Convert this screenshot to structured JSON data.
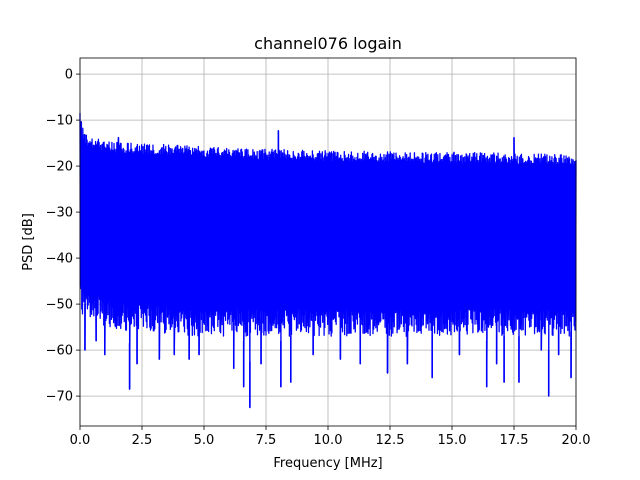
{
  "chart_data": {
    "type": "line",
    "title": "channel076 logain",
    "xlabel": "Frequency [MHz]",
    "ylabel": "PSD [dB]",
    "xlim": [
      0,
      20
    ],
    "ylim": [
      -76.5,
      3.5
    ],
    "xticks": [
      0,
      2.5,
      5,
      7.5,
      10,
      12.5,
      15,
      17.5,
      20
    ],
    "xtick_labels": [
      "0.0",
      "2.5",
      "5.0",
      "7.5",
      "10.0",
      "12.5",
      "15.0",
      "17.5",
      "20.0"
    ],
    "yticks": [
      0,
      -10,
      -20,
      -30,
      -40,
      -50,
      -60,
      -70
    ],
    "ytick_labels": [
      "0",
      "−10",
      "−20",
      "−30",
      "−40",
      "−50",
      "−60",
      "−70"
    ],
    "grid": true,
    "series": [
      {
        "color": "#0000ff",
        "upper_envelope": {
          "x": [
            0.0,
            0.05,
            0.15,
            0.3,
            0.6,
            1.0,
            2.0,
            3.0,
            4.0,
            5.0,
            6.0,
            7.0,
            8.0,
            9.0,
            10.0,
            11.0,
            12.0,
            13.0,
            14.0,
            15.0,
            16.0,
            17.0,
            18.0,
            19.0,
            20.0
          ],
          "y": [
            -7,
            -10,
            -12.5,
            -13.5,
            -14,
            -14.5,
            -15,
            -15.2,
            -15.5,
            -15.8,
            -16,
            -16.2,
            -16.4,
            -16.5,
            -16.6,
            -16.7,
            -16.8,
            -16.9,
            -17,
            -17,
            -17,
            -17.2,
            -17.3,
            -17.4,
            -17.5
          ]
        },
        "lower_envelope": {
          "x": [
            0.0,
            1.0,
            2.0,
            3.0,
            4.0,
            5.0,
            6.0,
            7.0,
            8.0,
            9.0,
            10.0,
            11.0,
            12.0,
            13.0,
            14.0,
            15.0,
            16.0,
            17.0,
            18.0,
            19.0,
            20.0
          ],
          "y": [
            -52,
            -55,
            -56,
            -56,
            -57,
            -57,
            -57,
            -57,
            -57,
            -57,
            -57,
            -57,
            -57,
            -57,
            -57,
            -57,
            -57,
            -57,
            -57,
            -57,
            -57
          ]
        },
        "peaks": [
          {
            "x": 8.0,
            "y": -12.3
          },
          {
            "x": 17.5,
            "y": -13.8
          },
          {
            "x": 1.55,
            "y": -13.8
          }
        ],
        "dips": [
          {
            "x": 0.2,
            "y": -60
          },
          {
            "x": 0.65,
            "y": -58
          },
          {
            "x": 1.0,
            "y": -61
          },
          {
            "x": 2.0,
            "y": -68.5
          },
          {
            "x": 2.3,
            "y": -63
          },
          {
            "x": 3.2,
            "y": -62
          },
          {
            "x": 3.8,
            "y": -61
          },
          {
            "x": 4.4,
            "y": -62
          },
          {
            "x": 4.8,
            "y": -61
          },
          {
            "x": 6.2,
            "y": -64
          },
          {
            "x": 6.6,
            "y": -68
          },
          {
            "x": 6.85,
            "y": -72.5
          },
          {
            "x": 7.3,
            "y": -63
          },
          {
            "x": 8.1,
            "y": -68
          },
          {
            "x": 8.5,
            "y": -67
          },
          {
            "x": 9.4,
            "y": -61
          },
          {
            "x": 10.5,
            "y": -62
          },
          {
            "x": 11.3,
            "y": -63
          },
          {
            "x": 12.4,
            "y": -65
          },
          {
            "x": 13.2,
            "y": -63
          },
          {
            "x": 14.2,
            "y": -66
          },
          {
            "x": 15.3,
            "y": -61
          },
          {
            "x": 16.4,
            "y": -68
          },
          {
            "x": 16.8,
            "y": -63
          },
          {
            "x": 17.1,
            "y": -67
          },
          {
            "x": 17.7,
            "y": -67
          },
          {
            "x": 18.6,
            "y": -60
          },
          {
            "x": 18.9,
            "y": -70
          },
          {
            "x": 19.3,
            "y": -61
          },
          {
            "x": 19.8,
            "y": -66
          }
        ]
      }
    ]
  }
}
